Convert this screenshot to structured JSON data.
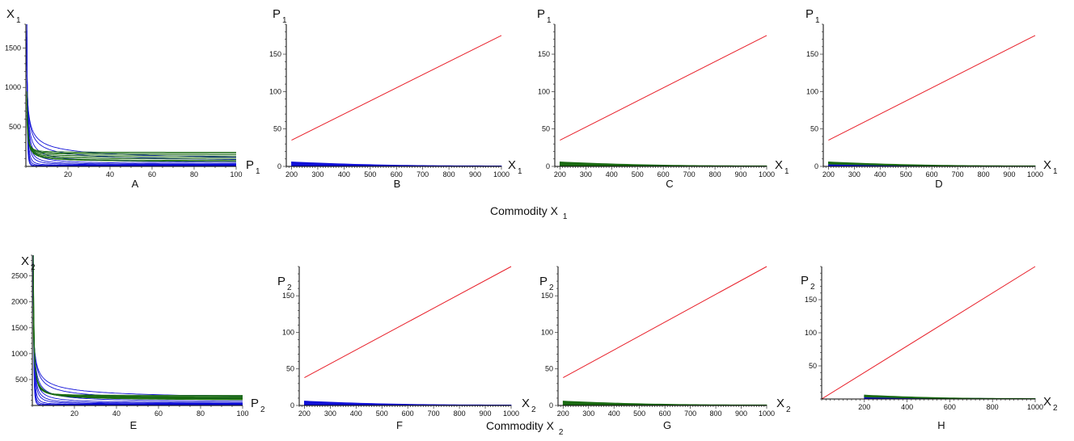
{
  "row_captions": [
    {
      "main": "Commodity X",
      "sub": "1"
    },
    {
      "main": "Commodity X",
      "sub": "2"
    }
  ],
  "colors": {
    "red": "#e8202a",
    "blue": "#1010d8",
    "green": "#1a6b12",
    "axis": "#000000"
  },
  "chart_data": [
    {
      "id": "A",
      "type": "line",
      "panel_label": "A",
      "xlabel": {
        "main": "P",
        "sub": "1"
      },
      "ylabel": {
        "main": "X",
        "sub": "1"
      },
      "xlim": [
        0,
        100
      ],
      "ylim": [
        0,
        1800
      ],
      "xticks": [
        20,
        40,
        60,
        80,
        100
      ],
      "yticks": [
        500,
        1000,
        1500
      ],
      "series": [
        {
          "color": "blue",
          "kind": "demand",
          "count": 10,
          "a": [
            1800,
            1720,
            1640,
            1560,
            1480,
            1400,
            1320,
            1240,
            1160,
            1080
          ],
          "c": [
            0,
            5,
            10,
            15,
            20,
            25,
            30,
            35,
            40,
            45
          ],
          "k": [
            3,
            2.6,
            2.2,
            1.8,
            1.4,
            1.2,
            1,
            0.8,
            0.6,
            0.5
          ]
        },
        {
          "color": "green",
          "kind": "demand",
          "count": 8,
          "a": [
            950,
            900,
            850,
            800,
            750,
            700,
            650,
            600
          ],
          "c": [
            180,
            165,
            150,
            130,
            110,
            90,
            70,
            55
          ],
          "k": [
            1.5,
            1.4,
            1.3,
            1.2,
            1.1,
            1,
            0.9,
            0.8
          ]
        }
      ]
    },
    {
      "id": "B",
      "type": "line",
      "panel_label": "B",
      "xlabel": {
        "main": "X",
        "sub": "1"
      },
      "ylabel": {
        "main": "P",
        "sub": "1"
      },
      "xlim": [
        180,
        1000
      ],
      "ylim": [
        0,
        190
      ],
      "xticks": [
        200,
        300,
        400,
        500,
        600,
        700,
        800,
        900,
        1000
      ],
      "yticks": [
        0,
        50,
        100,
        150
      ],
      "series": [
        {
          "color": "red",
          "kind": "line",
          "x": [
            200,
            1000
          ],
          "y": [
            35,
            175
          ]
        },
        {
          "color": "blue",
          "kind": "band",
          "x": [
            200,
            1000
          ],
          "top": [
            6,
            0.7
          ],
          "bottom": [
            0.8,
            0.1
          ]
        }
      ]
    },
    {
      "id": "C",
      "type": "line",
      "panel_label": "C",
      "xlabel": {
        "main": "X",
        "sub": "1"
      },
      "ylabel": {
        "main": "P",
        "sub": "1"
      },
      "xlim": [
        180,
        1000
      ],
      "ylim": [
        0,
        190
      ],
      "xticks": [
        200,
        300,
        400,
        500,
        600,
        700,
        800,
        900,
        1000
      ],
      "yticks": [
        0,
        50,
        100,
        150
      ],
      "series": [
        {
          "color": "red",
          "kind": "line",
          "x": [
            200,
            1000
          ],
          "y": [
            35,
            175
          ]
        },
        {
          "color": "green",
          "kind": "band",
          "x": [
            200,
            1000
          ],
          "top": [
            6,
            0.8
          ],
          "bottom": [
            0.8,
            0.1
          ]
        }
      ]
    },
    {
      "id": "D",
      "type": "line",
      "panel_label": "D",
      "xlabel": {
        "main": "X",
        "sub": "1"
      },
      "ylabel": {
        "main": "P",
        "sub": "1"
      },
      "xlim": [
        180,
        1000
      ],
      "ylim": [
        0,
        190
      ],
      "xticks": [
        200,
        300,
        400,
        500,
        600,
        700,
        800,
        900,
        1000
      ],
      "yticks": [
        0,
        50,
        100,
        150
      ],
      "series": [
        {
          "color": "red",
          "kind": "line",
          "x": [
            200,
            1000
          ],
          "y": [
            35,
            175
          ]
        },
        {
          "color": "blue",
          "kind": "band",
          "x": [
            200,
            1000
          ],
          "top": [
            4,
            0.5
          ],
          "bottom": [
            0.5,
            0.1
          ]
        },
        {
          "color": "green",
          "kind": "band",
          "x": [
            200,
            1000
          ],
          "top": [
            6,
            0.8
          ],
          "bottom": [
            3,
            0.4
          ]
        }
      ]
    },
    {
      "id": "E",
      "type": "line",
      "panel_label": "E",
      "xlabel": {
        "main": "P",
        "sub": "2"
      },
      "ylabel": {
        "main": "X",
        "sub": "2"
      },
      "xlim": [
        0,
        100
      ],
      "ylim": [
        0,
        2900
      ],
      "xticks": [
        20,
        40,
        60,
        80,
        100
      ],
      "yticks": [
        500,
        1000,
        1500,
        2000,
        2500
      ],
      "series": [
        {
          "color": "blue",
          "kind": "demand",
          "count": 10,
          "a": [
            2900,
            2750,
            2600,
            2450,
            2300,
            2150,
            2000,
            1850,
            1700,
            1550
          ],
          "c": [
            0,
            8,
            16,
            24,
            32,
            40,
            48,
            56,
            64,
            72
          ],
          "k": [
            3,
            2.6,
            2.2,
            1.8,
            1.4,
            1.2,
            1,
            0.8,
            0.6,
            0.5
          ]
        },
        {
          "color": "green",
          "kind": "demand",
          "count": 8,
          "a": [
            2900,
            2700,
            2500,
            2300,
            2100,
            1900,
            1700,
            1500
          ],
          "c": [
            195,
            180,
            165,
            150,
            135,
            120,
            105,
            90
          ],
          "k": [
            1.5,
            1.4,
            1.3,
            1.2,
            1.1,
            1,
            0.9,
            0.8
          ]
        }
      ]
    },
    {
      "id": "F",
      "type": "line",
      "panel_label": "F",
      "xlabel": {
        "main": "X",
        "sub": "2"
      },
      "ylabel": {
        "main": "P",
        "sub": "2"
      },
      "xlim": [
        180,
        1000
      ],
      "ylim": [
        0,
        190
      ],
      "xticks": [
        200,
        300,
        400,
        500,
        600,
        700,
        800,
        900,
        1000
      ],
      "yticks": [
        0,
        50,
        100,
        150
      ],
      "series": [
        {
          "color": "red",
          "kind": "line",
          "x": [
            200,
            1000
          ],
          "y": [
            38,
            190
          ]
        },
        {
          "color": "blue",
          "kind": "band",
          "x": [
            200,
            1000
          ],
          "top": [
            6,
            0.7
          ],
          "bottom": [
            0.8,
            0.1
          ]
        }
      ]
    },
    {
      "id": "G",
      "type": "line",
      "panel_label": "G",
      "xlabel": {
        "main": "X",
        "sub": "2"
      },
      "ylabel": {
        "main": "P",
        "sub": "2"
      },
      "xlim": [
        180,
        1000
      ],
      "ylim": [
        0,
        190
      ],
      "xticks": [
        200,
        300,
        400,
        500,
        600,
        700,
        800,
        900,
        1000
      ],
      "yticks": [
        0,
        50,
        100,
        150
      ],
      "series": [
        {
          "color": "red",
          "kind": "line",
          "x": [
            200,
            1000
          ],
          "y": [
            38,
            190
          ]
        },
        {
          "color": "green",
          "kind": "band",
          "x": [
            200,
            1000
          ],
          "top": [
            6,
            0.8
          ],
          "bottom": [
            0.8,
            0.1
          ]
        }
      ]
    },
    {
      "id": "H",
      "type": "line",
      "panel_label": "H",
      "xlabel": {
        "main": "X",
        "sub": "2"
      },
      "ylabel": {
        "main": "P",
        "sub": "2"
      },
      "xlim": [
        0,
        1000
      ],
      "ylim": [
        0,
        200
      ],
      "xticks": [
        200,
        400,
        600,
        800,
        1000
      ],
      "yticks": [
        50,
        100,
        150
      ],
      "series": [
        {
          "color": "red",
          "kind": "line",
          "x": [
            0,
            1000
          ],
          "y": [
            0,
            200
          ]
        },
        {
          "color": "blue",
          "kind": "band",
          "x": [
            200,
            1000
          ],
          "top": [
            5,
            0.6
          ],
          "bottom": [
            0.5,
            0.1
          ]
        },
        {
          "color": "green",
          "kind": "band",
          "x": [
            200,
            1000
          ],
          "top": [
            6,
            0.8
          ],
          "bottom": [
            3,
            0.4
          ]
        }
      ]
    }
  ]
}
